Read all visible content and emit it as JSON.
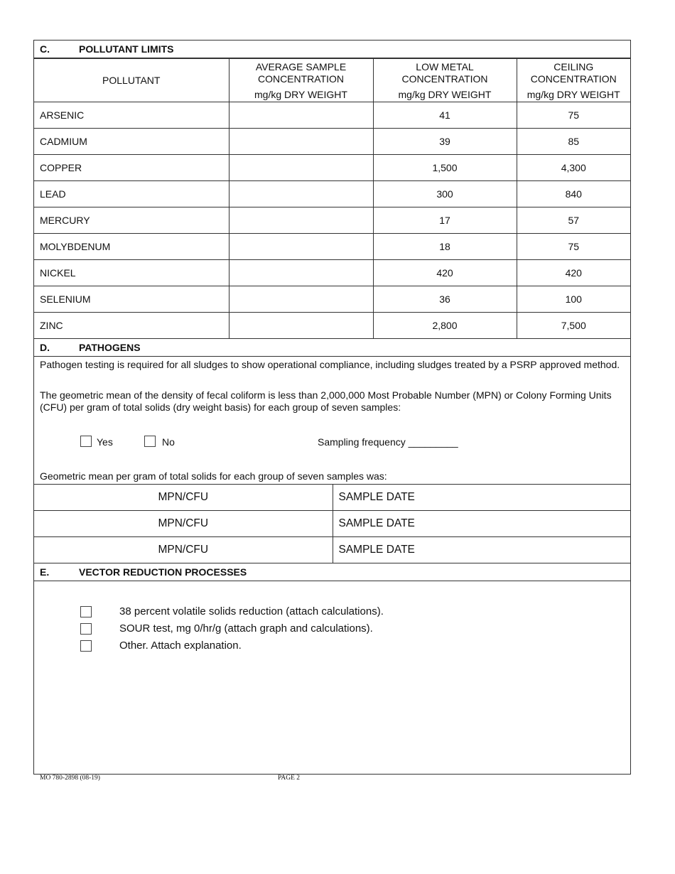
{
  "section_c": {
    "letter": "C.",
    "title": "POLLUTANT LIMITS",
    "headers": {
      "pollutant": "POLLUTANT",
      "avg_line1": "AVERAGE SAMPLE",
      "avg_line2": "CONCENTRATION",
      "avg_unit": "mg/kg DRY WEIGHT",
      "low_line1": "LOW METAL",
      "low_line2": "CONCENTRATION",
      "low_unit": "mg/kg DRY WEIGHT",
      "ceil_line1": "CEILING",
      "ceil_line2": "CONCENTRATION",
      "ceil_unit": "mg/kg DRY WEIGHT"
    },
    "rows": [
      {
        "name": "ARSENIC",
        "avg": "",
        "low": "41",
        "ceiling": "75"
      },
      {
        "name": "CADMIUM",
        "avg": "",
        "low": "39",
        "ceiling": "85"
      },
      {
        "name": "COPPER",
        "avg": "",
        "low": "1,500",
        "ceiling": "4,300"
      },
      {
        "name": "LEAD",
        "avg": "",
        "low": "300",
        "ceiling": "840"
      },
      {
        "name": "MERCURY",
        "avg": "",
        "low": "17",
        "ceiling": "57"
      },
      {
        "name": "MOLYBDENUM",
        "avg": "",
        "low": "18",
        "ceiling": "75"
      },
      {
        "name": "NICKEL",
        "avg": "",
        "low": "420",
        "ceiling": "420"
      },
      {
        "name": "SELENIUM",
        "avg": "",
        "low": "36",
        "ceiling": "100"
      },
      {
        "name": "ZINC",
        "avg": "",
        "low": "2,800",
        "ceiling": "7,500"
      }
    ]
  },
  "section_d": {
    "letter": "D.",
    "title": "PATHOGENS",
    "para1": "Pathogen testing is required for all sludges to show operational compliance, including sludges treated by a PSRP approved method.",
    "para2": "The geometric mean of the density of fecal coliform is less than 2,000,000 Most Probable Number (MPN) or Colony Forming Units (CFU) per gram of total solids (dry weight basis) for each group of seven samples:",
    "yes": "Yes",
    "no": "No",
    "sampling_frequency": "Sampling frequency _________",
    "geo_mean": "Geometric mean per gram of total solids for each group of seven samples was:",
    "rows": [
      {
        "mpn": "MPN/CFU",
        "date": "SAMPLE DATE"
      },
      {
        "mpn": "MPN/CFU",
        "date": "SAMPLE DATE"
      },
      {
        "mpn": "MPN/CFU",
        "date": "SAMPLE DATE"
      }
    ]
  },
  "section_e": {
    "letter": "E.",
    "title": "VECTOR REDUCTION PROCESSES",
    "options": [
      "38 percent volatile solids reduction (attach calculations).",
      "SOUR test, mg 0/hr/g  (attach graph and calculations).",
      "Other.  Attach explanation."
    ]
  },
  "footer": {
    "form_number": "MO 780-2898 (08-19)",
    "page": "PAGE 2"
  }
}
